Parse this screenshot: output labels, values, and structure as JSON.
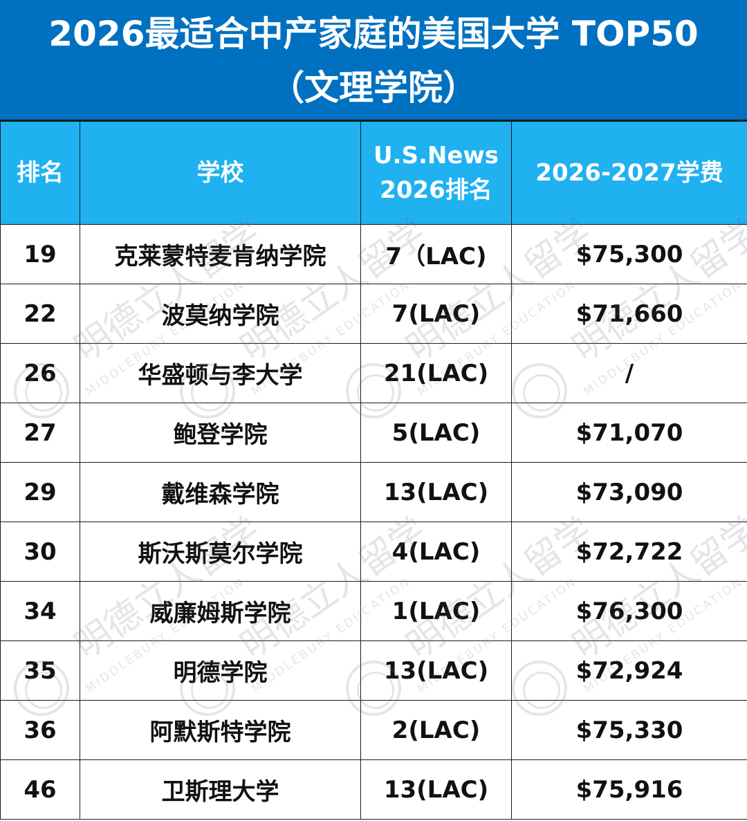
{
  "title": {
    "line1": "2026最适合中产家庭的美国大学 TOP50",
    "line2": "（文理学院）"
  },
  "table": {
    "headers": {
      "rank": "排名",
      "school": "学校",
      "usnews_line1": "U.S.News",
      "usnews_line2": "2026排名",
      "fee": "2026-2027学费"
    },
    "rows": [
      {
        "rank": "19",
        "school": "克莱蒙特麦肯纳学院",
        "usnews": "7（LAC)",
        "fee": "$75,300"
      },
      {
        "rank": "22",
        "school": "波莫纳学院",
        "usnews": "7(LAC)",
        "fee": "$71,660"
      },
      {
        "rank": "26",
        "school": "华盛顿与李大学",
        "usnews": "21(LAC)",
        "fee": "/"
      },
      {
        "rank": "27",
        "school": "鲍登学院",
        "usnews": "5(LAC)",
        "fee": "$71,070"
      },
      {
        "rank": "29",
        "school": "戴维森学院",
        "usnews": "13(LAC)",
        "fee": "$73,090"
      },
      {
        "rank": "30",
        "school": "斯沃斯莫尔学院",
        "usnews": "4(LAC)",
        "fee": "$72,722"
      },
      {
        "rank": "34",
        "school": "威廉姆斯学院",
        "usnews": "1(LAC)",
        "fee": "$76,300"
      },
      {
        "rank": "35",
        "school": "明德学院",
        "usnews": "13(LAC)",
        "fee": "$72,924"
      },
      {
        "rank": "36",
        "school": "阿默斯特学院",
        "usnews": "2(LAC)",
        "fee": "$75,330"
      },
      {
        "rank": "46",
        "school": "卫斯理大学",
        "usnews": "13(LAC)",
        "fee": "$75,916"
      }
    ]
  },
  "watermark": {
    "cn": "明德立人留学",
    "en": "MIDDLEBURY EDUCATION",
    "icon": "seal-logo-icon"
  },
  "colors": {
    "title_bg": "#0070c0",
    "header_bg": "#1fb1f0",
    "text_white": "#ffffff",
    "text_dark": "#111111",
    "border": "#1a1a1a"
  }
}
